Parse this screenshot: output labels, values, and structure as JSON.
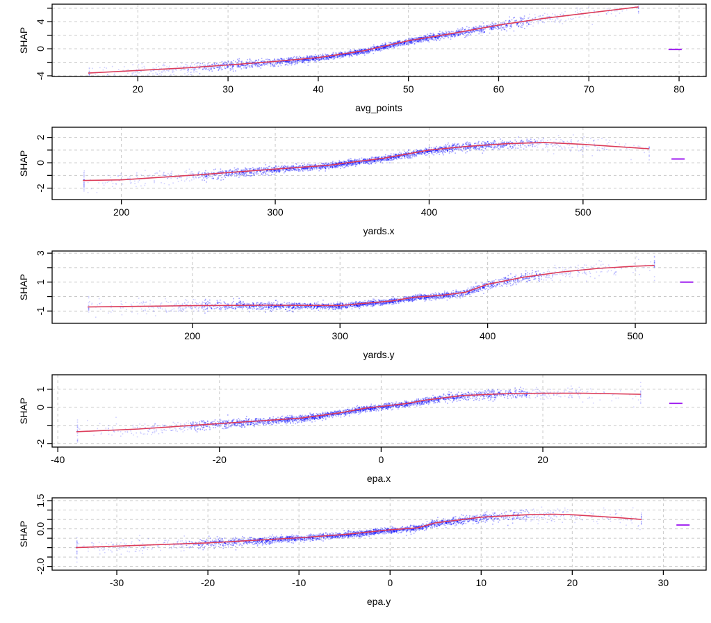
{
  "chart_data": [
    {
      "type": "scatter",
      "title": "",
      "xlabel": "avg_points",
      "ylabel": "SHAP",
      "xlim": [
        10.5,
        83
      ],
      "ylim": [
        -4.1,
        6.6
      ],
      "xticks": [
        20,
        30,
        40,
        50,
        60,
        70,
        80
      ],
      "xtick_labels": [
        "20",
        "30",
        "40",
        "50",
        "60",
        "70",
        "80"
      ],
      "yticks": [
        -4,
        -2,
        0,
        2,
        4,
        6
      ],
      "ytick_labels": [
        "-4",
        "",
        "0",
        "",
        "4",
        ""
      ],
      "grid": true,
      "series": [
        {
          "name": "smooth",
          "kind": "line",
          "color": "#dc3c5a",
          "x": [
            14.5,
            20,
            25,
            30,
            35,
            40,
            45,
            50,
            55,
            60,
            65,
            70,
            75.5
          ],
          "y": [
            -3.6,
            -3.2,
            -2.85,
            -2.4,
            -1.9,
            -1.3,
            -0.3,
            1.2,
            2.3,
            3.5,
            4.5,
            5.3,
            6.2
          ]
        },
        {
          "name": "points",
          "kind": "scatter",
          "color": "#0000ff",
          "x_range": [
            14.5,
            75.5
          ],
          "count": 2400
        },
        {
          "name": "marker",
          "kind": "dash",
          "color": "#a020f0",
          "x": 79.6,
          "y": -0.1
        }
      ]
    },
    {
      "type": "scatter",
      "title": "",
      "xlabel": "yards.x",
      "ylabel": "SHAP",
      "xlim": [
        155,
        580
      ],
      "ylim": [
        -2.9,
        2.8
      ],
      "xticks": [
        200,
        300,
        400,
        500
      ],
      "xtick_labels": [
        "200",
        "300",
        "400",
        "500"
      ],
      "yticks": [
        -2,
        -1,
        0,
        1,
        2
      ],
      "ytick_labels": [
        "-2",
        "",
        "0",
        "",
        "2"
      ],
      "grid": true,
      "series": [
        {
          "name": "smooth",
          "kind": "line",
          "color": "#dc3c5a",
          "x": [
            175,
            200,
            250,
            300,
            335,
            350,
            370,
            400,
            425,
            450,
            475,
            500,
            525,
            543
          ],
          "y": [
            -1.4,
            -1.35,
            -0.95,
            -0.5,
            -0.2,
            0.05,
            0.35,
            1.0,
            1.3,
            1.5,
            1.6,
            1.45,
            1.25,
            1.1
          ]
        },
        {
          "name": "points",
          "kind": "scatter",
          "color": "#0000ff",
          "x_range": [
            175,
            543
          ],
          "count": 2400
        },
        {
          "name": "marker",
          "kind": "dash",
          "color": "#a020f0",
          "x": 562,
          "y": 0.3
        }
      ]
    },
    {
      "type": "scatter",
      "title": "",
      "xlabel": "yards.y",
      "ylabel": "SHAP",
      "xlim": [
        105,
        548
      ],
      "ylim": [
        -1.85,
        3.15
      ],
      "xticks": [
        200,
        300,
        400,
        500
      ],
      "xtick_labels": [
        "200",
        "300",
        "400",
        "500"
      ],
      "yticks": [
        -1,
        0,
        1,
        2,
        3
      ],
      "ytick_labels": [
        "-1",
        "",
        "1",
        "",
        "3"
      ],
      "grid": true,
      "series": [
        {
          "name": "smooth",
          "kind": "line",
          "color": "#dc3c5a",
          "x": [
            129,
            200,
            250,
            300,
            335,
            350,
            370,
            385,
            400,
            425,
            450,
            475,
            500,
            513
          ],
          "y": [
            -0.72,
            -0.63,
            -0.6,
            -0.62,
            -0.3,
            -0.05,
            0.1,
            0.3,
            0.85,
            1.35,
            1.7,
            1.95,
            2.1,
            2.15
          ]
        },
        {
          "name": "points",
          "kind": "scatter",
          "color": "#0000ff",
          "x_range": [
            129,
            513
          ],
          "count": 2400
        },
        {
          "name": "marker",
          "kind": "dash",
          "color": "#a020f0",
          "x": 535,
          "y": 1.0
        }
      ]
    },
    {
      "type": "scatter",
      "title": "",
      "xlabel": "epa.x",
      "ylabel": "SHAP",
      "xlim": [
        -40.7,
        40.2
      ],
      "ylim": [
        -2.2,
        1.8
      ],
      "xticks": [
        -40,
        -20,
        0,
        20
      ],
      "xtick_labels": [
        "-40",
        "-20",
        "0",
        "20"
      ],
      "yticks": [
        -2,
        -1,
        0,
        1
      ],
      "ytick_labels": [
        "-2",
        "",
        "0",
        "1"
      ],
      "grid": true,
      "series": [
        {
          "name": "smooth",
          "kind": "line",
          "color": "#dc3c5a",
          "x": [
            -37.7,
            -30,
            -20,
            -10,
            -5,
            -2,
            0,
            3,
            5.5,
            10,
            15,
            20,
            25,
            32.1
          ],
          "y": [
            -1.35,
            -1.2,
            -0.9,
            -0.6,
            -0.3,
            -0.05,
            0.05,
            0.2,
            0.4,
            0.65,
            0.75,
            0.78,
            0.78,
            0.72
          ]
        },
        {
          "name": "points",
          "kind": "scatter",
          "color": "#0000ff",
          "x_range": [
            -37.7,
            32.1
          ],
          "count": 2400
        },
        {
          "name": "marker",
          "kind": "dash",
          "color": "#a020f0",
          "x": 36.5,
          "y": 0.22
        }
      ]
    },
    {
      "type": "scatter",
      "title": "",
      "xlabel": "epa.y",
      "ylabel": "SHAP",
      "xlim": [
        -37.1,
        34.7
      ],
      "ylim": [
        -2.2,
        1.65
      ],
      "xticks": [
        -30,
        -20,
        -10,
        0,
        10,
        20,
        30
      ],
      "xtick_labels": [
        "-30",
        "-20",
        "-10",
        "0",
        "10",
        "20",
        "30"
      ],
      "yticks": [
        -2.0,
        -1.5,
        -1.0,
        -0.5,
        0.0,
        0.5,
        1.0,
        1.5
      ],
      "ytick_labels": [
        "-2.0",
        "",
        "",
        "",
        "0.0",
        "",
        "",
        "1.5"
      ],
      "grid": true,
      "series": [
        {
          "name": "smooth",
          "kind": "line",
          "color": "#dc3c5a",
          "x": [
            -34.5,
            -30,
            -20,
            -10,
            -5,
            0,
            3,
            5,
            10,
            15,
            18,
            20,
            25,
            27.6
          ],
          "y": [
            -1.0,
            -0.92,
            -0.75,
            -0.48,
            -0.3,
            -0.05,
            0.05,
            0.32,
            0.62,
            0.75,
            0.78,
            0.75,
            0.6,
            0.5
          ]
        },
        {
          "name": "points",
          "kind": "scatter",
          "color": "#0000ff",
          "x_range": [
            -34.5,
            27.6
          ],
          "count": 2400
        },
        {
          "name": "marker",
          "kind": "dash",
          "color": "#a020f0",
          "x": 32.2,
          "y": 0.2
        }
      ]
    }
  ]
}
